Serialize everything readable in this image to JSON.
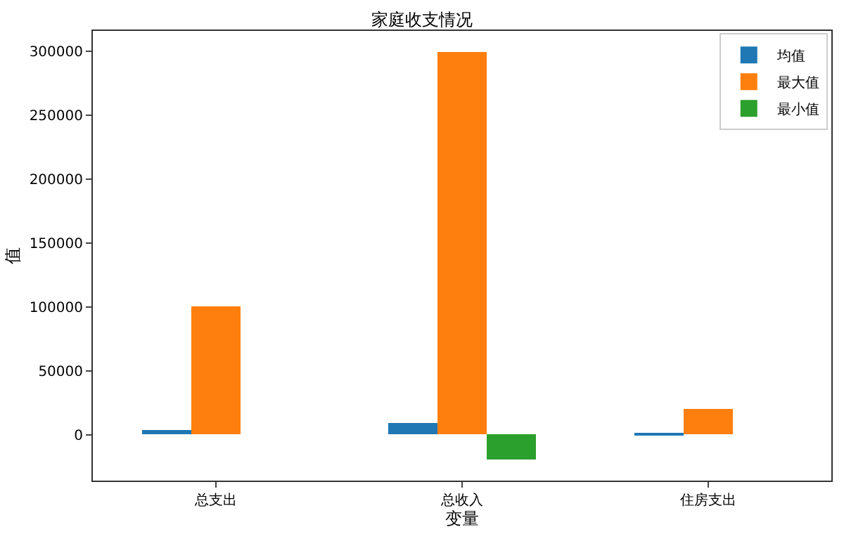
{
  "chart_data": {
    "type": "bar",
    "title": "家庭收支情况",
    "xlabel": "变量",
    "ylabel": "值",
    "categories": [
      "总支出",
      "总收入",
      "住房支出"
    ],
    "series": [
      {
        "name": "均值",
        "color": "#1f77b4",
        "values": [
          4000,
          9000,
          1000
        ]
      },
      {
        "name": "最大值",
        "color": "#ff7f0e",
        "values": [
          100000,
          300000,
          20000
        ]
      },
      {
        "name": "最小值",
        "color": "#2ca02c",
        "values": [
          0,
          -20000,
          0
        ]
      }
    ],
    "ylim": [
      -36000,
      316000
    ],
    "yticks": [
      0,
      50000,
      100000,
      150000,
      200000,
      250000,
      300000
    ],
    "legend": "top right"
  }
}
